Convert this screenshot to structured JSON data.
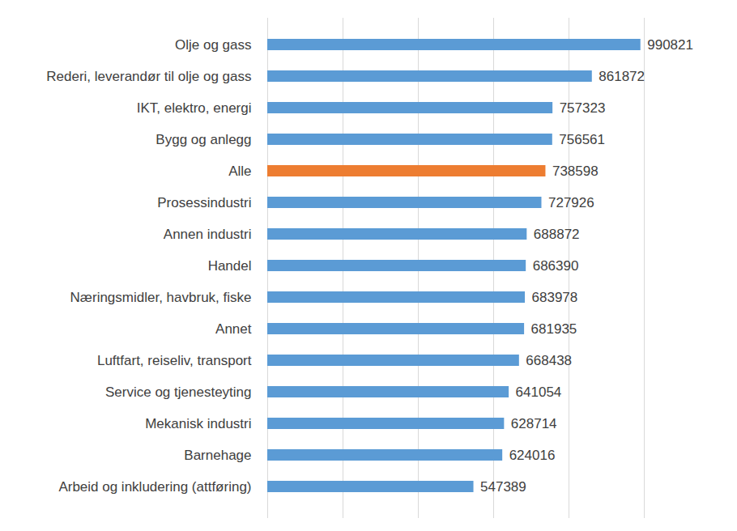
{
  "chart_data": {
    "type": "bar",
    "orientation": "horizontal",
    "categories": [
      "Olje og gass",
      "Rederi, leverandør til olje og gass",
      "IKT, elektro, energi",
      "Bygg og anlegg",
      "Alle",
      "Prosessindustri",
      "Annen industri",
      "Handel",
      "Næringsmidler, havbruk, fiske",
      "Annet",
      "Luftfart, reiseliv, transport",
      "Service og tjenesteyting",
      "Mekanisk industri",
      "Barnehage",
      "Arbeid og inkludering (attføring)"
    ],
    "values": [
      990821,
      861872,
      757323,
      756561,
      738598,
      727926,
      688872,
      686390,
      683978,
      681935,
      668438,
      641054,
      628714,
      624016,
      547389
    ],
    "colors": [
      "#5b9bd5",
      "#5b9bd5",
      "#5b9bd5",
      "#5b9bd5",
      "#ed7d31",
      "#5b9bd5",
      "#5b9bd5",
      "#5b9bd5",
      "#5b9bd5",
      "#5b9bd5",
      "#5b9bd5",
      "#5b9bd5",
      "#5b9bd5",
      "#5b9bd5",
      "#5b9bd5"
    ],
    "xlim": [
      0,
      1000000
    ],
    "xticks": [
      0,
      200000,
      400000,
      600000,
      800000,
      1000000
    ],
    "grid": true,
    "data_labels": true,
    "tick_labels": "y"
  }
}
